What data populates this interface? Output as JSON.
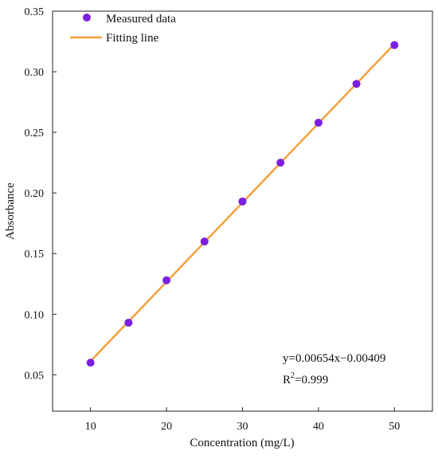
{
  "chart_data": {
    "type": "scatter",
    "xlabel": "Concentration (mg/L)",
    "ylabel": "Absorbance",
    "xlim": [
      5,
      55
    ],
    "ylim": [
      0.02,
      0.35
    ],
    "xticks": [
      10,
      20,
      30,
      40,
      50
    ],
    "yticks": [
      0.05,
      0.1,
      0.15,
      0.2,
      0.25,
      0.3,
      0.35
    ],
    "xtick_labels": [
      "10",
      "20",
      "30",
      "40",
      "50"
    ],
    "ytick_labels": [
      "0.05",
      "0.10",
      "0.15",
      "0.20",
      "0.25",
      "0.30",
      "0.35"
    ],
    "grid": false,
    "legend_position": "top-left",
    "series": [
      {
        "name": "Measured data",
        "kind": "scatter",
        "color": "#7b1fe0",
        "x": [
          10,
          15,
          20,
          25,
          30,
          35,
          40,
          45,
          50
        ],
        "y": [
          0.06,
          0.093,
          0.128,
          0.16,
          0.193,
          0.225,
          0.258,
          0.29,
          0.322
        ]
      },
      {
        "name": "Fitting line",
        "kind": "line",
        "color": "#f5a03c",
        "x": [
          10,
          50
        ],
        "y": [
          0.0613,
          0.3229
        ]
      }
    ],
    "annotations": {
      "equation": "y=0.00654x−0.00409",
      "r2_prefix": "R",
      "r2_sup": "2",
      "r2_value": "=0.999"
    }
  }
}
